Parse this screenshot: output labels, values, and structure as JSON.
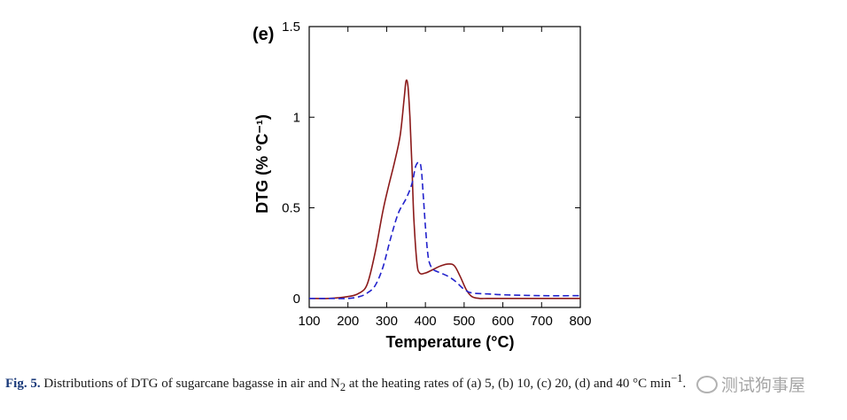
{
  "chart_data": {
    "type": "line",
    "panel_label": "(e)",
    "xlabel": "Temperature (°C)",
    "ylabel": "DTG (% °C⁻¹)",
    "xlim": [
      100,
      800
    ],
    "ylim": [
      -0.05,
      1.5
    ],
    "xticks": [
      100,
      200,
      300,
      400,
      500,
      600,
      700,
      800
    ],
    "yticks": [
      0,
      0.5,
      1,
      1.5
    ],
    "ytick_labels": [
      "0",
      "0.5",
      "1",
      "1.5"
    ],
    "series": [
      {
        "name": "air",
        "color": "#8b1a1a",
        "style": "solid",
        "x": [
          100,
          150,
          200,
          230,
          250,
          270,
          290,
          305,
          320,
          335,
          345,
          350,
          355,
          360,
          365,
          370,
          378,
          385,
          400,
          420,
          440,
          460,
          475,
          490,
          505,
          520,
          540,
          560,
          600,
          700,
          800
        ],
        "y": [
          0,
          0,
          0.01,
          0.03,
          0.08,
          0.25,
          0.48,
          0.62,
          0.75,
          0.9,
          1.1,
          1.2,
          1.17,
          1.0,
          0.75,
          0.45,
          0.2,
          0.14,
          0.14,
          0.16,
          0.18,
          0.19,
          0.18,
          0.12,
          0.05,
          0.01,
          0,
          0,
          0,
          0,
          0
        ]
      },
      {
        "name": "N2",
        "color": "#2222cc",
        "style": "dashed",
        "x": [
          100,
          150,
          200,
          230,
          250,
          270,
          290,
          310,
          330,
          350,
          365,
          375,
          385,
          390,
          395,
          400,
          405,
          410,
          420,
          440,
          460,
          480,
          500,
          520,
          560,
          600,
          700,
          800
        ],
        "y": [
          0,
          0,
          0.0,
          0.01,
          0.03,
          0.07,
          0.17,
          0.33,
          0.47,
          0.55,
          0.63,
          0.73,
          0.75,
          0.7,
          0.55,
          0.4,
          0.27,
          0.2,
          0.16,
          0.14,
          0.12,
          0.09,
          0.05,
          0.03,
          0.025,
          0.02,
          0.015,
          0.015
        ]
      }
    ]
  },
  "caption": {
    "label": "Fig. 5.",
    "text_before_sub": " Distributions of DTG of sugarcane bagasse in air and N",
    "subscript": "2",
    "text_after_sub": " at the heating rates of (a) 5, (b) 10, (c) 20, (d) ",
    "tail": " and 40 °C min",
    "tail_sup": "−1",
    "end": "."
  },
  "watermark": {
    "text": "测试狗事屋"
  }
}
